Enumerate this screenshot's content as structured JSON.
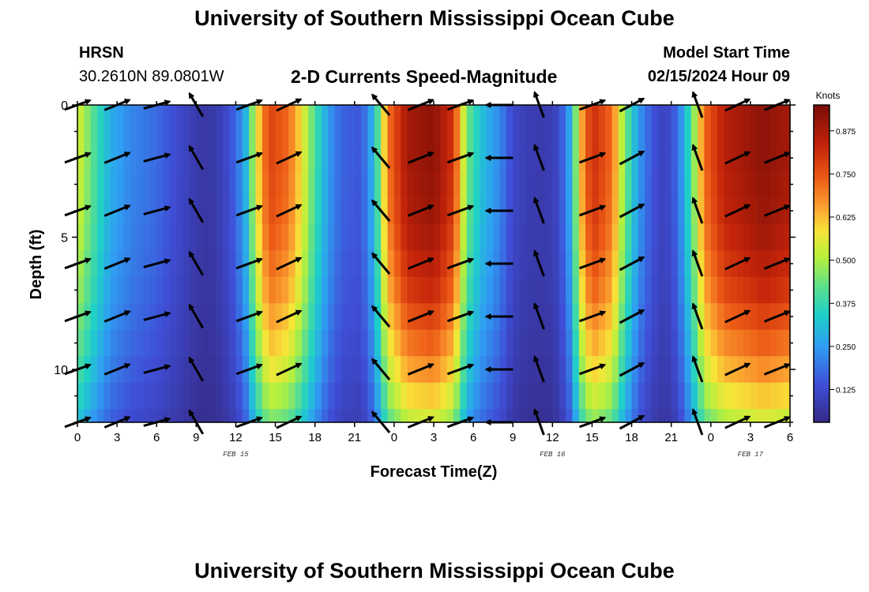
{
  "header": {
    "title": "University of Southern Mississippi Ocean Cube",
    "station": "HRSN",
    "coordinates": "30.2610N  89.0801W",
    "subtitle": "2-D Currents Speed-Magnitude",
    "model_start_label": "Model Start Time",
    "model_start_value": "02/15/2024 Hour 09"
  },
  "footer": {
    "title": "University of Southern Mississippi Ocean Cube"
  },
  "chart_data": {
    "type": "heatmap",
    "title": "2-D Currents Speed-Magnitude",
    "xlabel": "Forecast Time(Z)",
    "ylabel": "Depth (ft)",
    "x_tick_labels": [
      "0",
      "3",
      "6",
      "9",
      "12",
      "15",
      "18",
      "21",
      "0",
      "3",
      "6",
      "9",
      "12",
      "15",
      "18",
      "21",
      "0",
      "3",
      "6"
    ],
    "x_hours_since_feb15_00z": [
      0,
      54
    ],
    "date_labels": [
      {
        "label": "FEB 15",
        "hour": 12
      },
      {
        "label": "FEB 16",
        "hour": 36
      },
      {
        "label": "FEB 17",
        "hour": 51
      }
    ],
    "y_ticks": [
      0,
      5,
      10
    ],
    "ylim": [
      0,
      12
    ],
    "y_inverted": true,
    "colorbar": {
      "label": "Knots",
      "ticks": [
        "0.125",
        "0.250",
        "0.375",
        "0.500",
        "0.625",
        "0.750",
        "0.875"
      ],
      "range": [
        0.03,
        0.95
      ]
    },
    "depth_levels": [
      0,
      1,
      2,
      3,
      4,
      5,
      6,
      7,
      8,
      9,
      10,
      11,
      12
    ],
    "hour_speed_profile": [
      {
        "hour": 0,
        "speed": 0.55
      },
      {
        "hour": 1.5,
        "speed": 0.38
      },
      {
        "hour": 2.5,
        "speed": 0.28
      },
      {
        "hour": 4,
        "speed": 0.22
      },
      {
        "hour": 6,
        "speed": 0.18
      },
      {
        "hour": 7.5,
        "speed": 0.13
      },
      {
        "hour": 9,
        "speed": 0.08
      },
      {
        "hour": 10,
        "speed": 0.07
      },
      {
        "hour": 11,
        "speed": 0.1
      },
      {
        "hour": 12,
        "speed": 0.17
      },
      {
        "hour": 12.8,
        "speed": 0.3
      },
      {
        "hour": 13.5,
        "speed": 0.55
      },
      {
        "hour": 14.5,
        "speed": 0.78
      },
      {
        "hour": 16,
        "speed": 0.72
      },
      {
        "hour": 17,
        "speed": 0.58
      },
      {
        "hour": 18,
        "speed": 0.4
      },
      {
        "hour": 19,
        "speed": 0.25
      },
      {
        "hour": 20,
        "speed": 0.17
      },
      {
        "hour": 21.5,
        "speed": 0.15
      },
      {
        "hour": 22.5,
        "speed": 0.3
      },
      {
        "hour": 23.5,
        "speed": 0.7
      },
      {
        "hour": 25,
        "speed": 0.88
      },
      {
        "hour": 27,
        "speed": 0.92
      },
      {
        "hour": 28.5,
        "speed": 0.8
      },
      {
        "hour": 29.5,
        "speed": 0.45
      },
      {
        "hour": 30.5,
        "speed": 0.32
      },
      {
        "hour": 32,
        "speed": 0.22
      },
      {
        "hour": 33,
        "speed": 0.12
      },
      {
        "hour": 34,
        "speed": 0.09
      },
      {
        "hour": 35.5,
        "speed": 0.08
      },
      {
        "hour": 36.5,
        "speed": 0.12
      },
      {
        "hour": 37.5,
        "speed": 0.3
      },
      {
        "hour": 38,
        "speed": 0.6
      },
      {
        "hour": 39,
        "speed": 0.82
      },
      {
        "hour": 40.5,
        "speed": 0.72
      },
      {
        "hour": 41.5,
        "speed": 0.45
      },
      {
        "hour": 42.5,
        "speed": 0.25
      },
      {
        "hour": 43.5,
        "speed": 0.15
      },
      {
        "hour": 44.5,
        "speed": 0.1
      },
      {
        "hour": 45.5,
        "speed": 0.18
      },
      {
        "hour": 46.5,
        "speed": 0.4
      },
      {
        "hour": 47.5,
        "speed": 0.72
      },
      {
        "hour": 49,
        "speed": 0.85
      },
      {
        "hour": 52,
        "speed": 0.92
      },
      {
        "hour": 54,
        "speed": 0.88
      }
    ],
    "depth_speed_factor": [
      1.0,
      1.0,
      1.0,
      0.99,
      0.98,
      0.96,
      0.93,
      0.9,
      0.85,
      0.8,
      0.74,
      0.67,
      0.6
    ],
    "vector_hours": [
      0,
      3,
      6,
      9,
      13,
      16,
      23,
      26,
      29,
      32,
      35,
      39,
      42,
      47,
      50,
      53
    ],
    "vector_depths": [
      0,
      2,
      4,
      6,
      8,
      10,
      12
    ],
    "vector_direction_deg": [
      20,
      22,
      15,
      120,
      20,
      25,
      130,
      22,
      20,
      180,
      110,
      20,
      28,
      110,
      25,
      22
    ]
  }
}
